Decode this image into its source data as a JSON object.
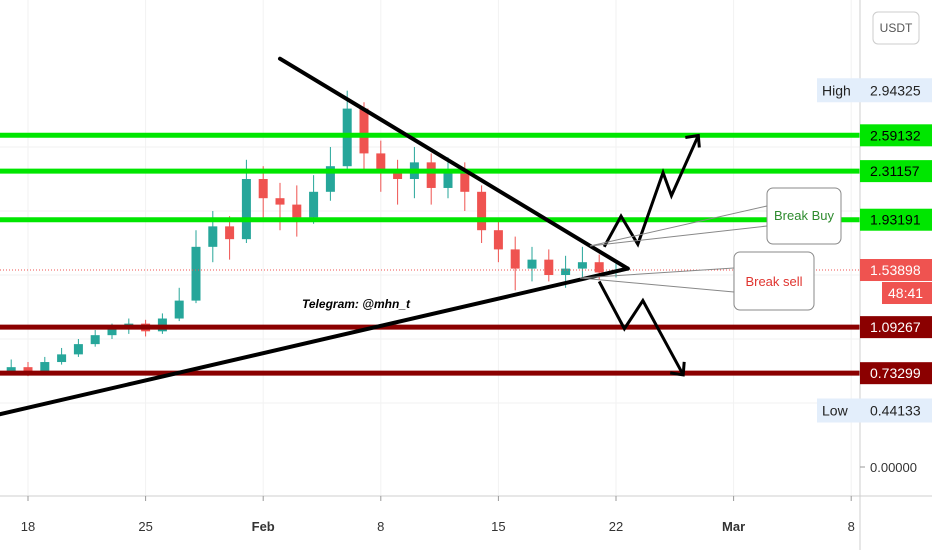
{
  "chart_data": {
    "type": "candlestick",
    "currency": "USDT",
    "x_ticks": [
      {
        "label": "18",
        "day": 18
      },
      {
        "label": "25",
        "day": 25
      },
      {
        "label": "Feb",
        "day": 32,
        "bold": true
      },
      {
        "label": "8",
        "day": 39
      },
      {
        "label": "15",
        "day": 46
      },
      {
        "label": "22",
        "day": 53
      },
      {
        "label": "Mar",
        "day": 60,
        "bold": true
      },
      {
        "label": "8",
        "day": 67
      }
    ],
    "y_ticks": [
      {
        "label": "0.00000",
        "value": 0.0
      }
    ],
    "price_levels": [
      {
        "label": "2.59132",
        "value": 2.59132,
        "color": "#00e600",
        "text_color": "#000000",
        "role": "resistance"
      },
      {
        "label": "2.31157",
        "value": 2.31157,
        "color": "#00e600",
        "text_color": "#000000",
        "role": "resistance"
      },
      {
        "label": "1.93191",
        "value": 1.93191,
        "color": "#00e600",
        "text_color": "#000000",
        "role": "resistance"
      },
      {
        "label": "1.09267",
        "value": 1.09267,
        "color": "#8b0000",
        "text_color": "#ffffff",
        "role": "support"
      },
      {
        "label": "0.73299",
        "value": 0.73299,
        "color": "#8b0000",
        "text_color": "#ffffff",
        "role": "support"
      }
    ],
    "high": {
      "label": "High",
      "value_label": "2.94325",
      "value": 2.94325
    },
    "low": {
      "label": "Low",
      "value_label": "0.44133",
      "value": 0.44133
    },
    "last_price": {
      "label": "1.53898",
      "value": 1.53898,
      "countdown": "48:41",
      "color": "#ef5350"
    },
    "callouts": {
      "buy": "Break Buy",
      "sell": "Break sell"
    },
    "annotation": "Telegram: @mhn_t",
    "candles": [
      [
        10,
        0.6,
        0.62,
        0.57,
        0.66
      ],
      [
        11,
        0.62,
        0.6,
        0.56,
        0.65
      ],
      [
        12,
        0.6,
        0.63,
        0.58,
        0.68
      ],
      [
        13,
        0.63,
        0.66,
        0.61,
        0.7
      ],
      [
        14,
        0.66,
        0.64,
        0.6,
        0.69
      ],
      [
        15,
        0.64,
        0.7,
        0.63,
        0.74
      ],
      [
        16,
        0.7,
        0.74,
        0.68,
        0.78
      ],
      [
        17,
        0.74,
        0.78,
        0.72,
        0.84
      ],
      [
        18,
        0.78,
        0.75,
        0.71,
        0.82
      ],
      [
        19,
        0.75,
        0.82,
        0.73,
        0.86
      ],
      [
        20,
        0.82,
        0.88,
        0.8,
        0.93
      ],
      [
        21,
        0.88,
        0.96,
        0.86,
        1.0
      ],
      [
        22,
        0.96,
        1.03,
        0.94,
        1.07
      ],
      [
        23,
        1.03,
        1.08,
        1.0,
        1.12
      ],
      [
        24,
        1.08,
        1.12,
        1.04,
        1.16
      ],
      [
        25,
        1.12,
        1.06,
        1.02,
        1.15
      ],
      [
        26,
        1.06,
        1.16,
        1.04,
        1.2
      ],
      [
        27,
        1.16,
        1.3,
        1.14,
        1.4
      ],
      [
        28,
        1.3,
        1.72,
        1.28,
        1.85
      ],
      [
        29,
        1.72,
        1.88,
        1.6,
        2.0
      ],
      [
        30,
        1.88,
        1.78,
        1.62,
        1.96
      ],
      [
        31,
        1.78,
        2.25,
        1.75,
        2.4
      ],
      [
        32,
        2.25,
        2.1,
        1.95,
        2.35
      ],
      [
        33,
        2.1,
        2.05,
        1.85,
        2.22
      ],
      [
        34,
        2.05,
        1.95,
        1.8,
        2.2
      ],
      [
        35,
        1.95,
        2.15,
        1.9,
        2.28
      ],
      [
        36,
        2.15,
        2.35,
        2.08,
        2.5
      ],
      [
        37,
        2.35,
        2.8,
        2.3,
        2.94
      ],
      [
        38,
        2.8,
        2.45,
        2.3,
        2.85
      ],
      [
        39,
        2.45,
        2.3,
        2.15,
        2.55
      ],
      [
        40,
        2.3,
        2.25,
        2.05,
        2.4
      ],
      [
        41,
        2.25,
        2.38,
        2.1,
        2.5
      ],
      [
        42,
        2.38,
        2.18,
        2.05,
        2.45
      ],
      [
        43,
        2.18,
        2.32,
        2.1,
        2.42
      ],
      [
        44,
        2.32,
        2.15,
        2.0,
        2.38
      ],
      [
        45,
        2.15,
        1.85,
        1.75,
        2.2
      ],
      [
        46,
        1.85,
        1.7,
        1.6,
        1.92
      ],
      [
        47,
        1.7,
        1.55,
        1.38,
        1.8
      ],
      [
        48,
        1.55,
        1.62,
        1.45,
        1.72
      ],
      [
        49,
        1.62,
        1.5,
        1.45,
        1.7
      ],
      [
        50,
        1.5,
        1.55,
        1.4,
        1.65
      ],
      [
        51,
        1.55,
        1.6,
        1.48,
        1.72
      ],
      [
        52,
        1.6,
        1.52,
        1.46,
        1.66
      ],
      [
        53,
        1.52,
        1.54,
        1.48,
        1.6
      ]
    ]
  }
}
